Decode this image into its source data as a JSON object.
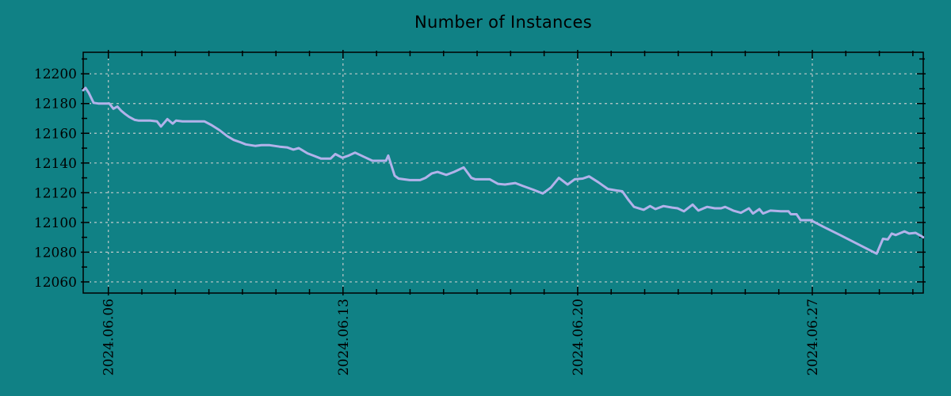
{
  "colors": {
    "background": "#108185",
    "line": "#b2b2ea",
    "grid": "#d2d2d2",
    "border": "#000000",
    "text": "#000000"
  },
  "chart_data": {
    "type": "line",
    "title": "Number of Instances",
    "xlabel": "",
    "ylabel": "",
    "legend": {
      "shown": false
    },
    "grid": {
      "shown": true,
      "style": "dashed"
    },
    "x_unit": "day of June 2024 (decimal)",
    "x_range": [
      5.25,
      30.31
    ],
    "x_ticks": {
      "major_values": [
        6,
        13,
        20,
        27
      ],
      "major_labels": [
        "2024.06.06",
        "2024.06.13",
        "2024.06.20",
        "2024.06.27"
      ],
      "minor_step": 1,
      "label_rotation_deg": -90
    },
    "y_range": [
      12052.5,
      12214.5
    ],
    "y_ticks": {
      "major_values": [
        12060,
        12080,
        12100,
        12120,
        12140,
        12160,
        12180,
        12200
      ],
      "minor_step": 10
    },
    "series": [
      {
        "name": "instances",
        "x": [
          5.25,
          5.32,
          5.42,
          5.56,
          5.7,
          5.9,
          6.03,
          6.15,
          6.27,
          6.39,
          6.5,
          6.62,
          6.79,
          6.91,
          7.25,
          7.45,
          7.57,
          7.76,
          7.92,
          8.02,
          8.21,
          8.87,
          9.08,
          9.32,
          9.55,
          9.74,
          9.93,
          10.1,
          10.38,
          10.57,
          10.81,
          11.11,
          11.33,
          11.52,
          11.68,
          11.94,
          12.11,
          12.34,
          12.63,
          12.77,
          12.98,
          13.17,
          13.36,
          13.64,
          13.88,
          14.28,
          14.35,
          14.45,
          14.54,
          14.66,
          14.99,
          15.3,
          15.46,
          15.65,
          15.82,
          16.08,
          16.31,
          16.6,
          16.83,
          16.95,
          17.38,
          17.62,
          17.83,
          18.14,
          18.37,
          18.68,
          18.96,
          19.2,
          19.44,
          19.7,
          19.91,
          20.15,
          20.34,
          20.62,
          20.9,
          21.16,
          21.33,
          21.52,
          21.68,
          21.97,
          22.16,
          22.32,
          22.56,
          22.82,
          22.98,
          23.17,
          23.43,
          23.6,
          23.86,
          24.09,
          24.28,
          24.4,
          24.64,
          24.87,
          25.11,
          25.23,
          25.42,
          25.53,
          25.75,
          26.06,
          26.29,
          26.36,
          26.53,
          26.65,
          26.95,
          27.36,
          27.83,
          28.37,
          28.92,
          29.11,
          29.25,
          29.37,
          29.49,
          29.75,
          29.89,
          30.08,
          30.24,
          30.31
        ],
        "y": [
          12189,
          12190.5,
          12187,
          12180.5,
          12180,
          12180,
          12180,
          12176.5,
          12178,
          12175,
          12173,
          12171,
          12169,
          12168.5,
          12168.5,
          12168,
          12164.5,
          12169.5,
          12166.5,
          12168.5,
          12168,
          12168,
          12165.5,
          12162,
          12158,
          12155.5,
          12154,
          12152.5,
          12151.5,
          12152,
          12152,
          12151,
          12150.5,
          12149,
          12150,
          12146.5,
          12145,
          12143,
          12143,
          12146,
          12143.5,
          12145,
          12147,
          12144,
          12141.5,
          12141.5,
          12145,
          12138,
          12131.5,
          12129.5,
          12128.5,
          12128.5,
          12130,
          12133,
          12134,
          12132,
          12134,
          12137,
          12130,
          12129,
          12129,
          12126,
          12125.5,
          12126.5,
          12124.5,
          12122,
          12119.5,
          12123.5,
          12130,
          12125.5,
          12129,
          12129.5,
          12131,
          12127,
          12122.5,
          12121.5,
          12121,
          12115,
          12110.5,
          12108.5,
          12111,
          12109,
          12111,
          12110,
          12109.5,
          12107.5,
          12112,
          12108,
          12110.5,
          12109.5,
          12109.5,
          12110.5,
          12108,
          12106.5,
          12109.5,
          12106,
          12109,
          12106,
          12108,
          12107.5,
          12107.5,
          12105.5,
          12105.5,
          12101.5,
          12101.5,
          12096.8,
          12091.5,
          12085.3,
          12079,
          12089,
          12088.5,
          12092.5,
          12091.5,
          12094,
          12092.5,
          12093,
          12091,
          12090
        ]
      }
    ]
  }
}
